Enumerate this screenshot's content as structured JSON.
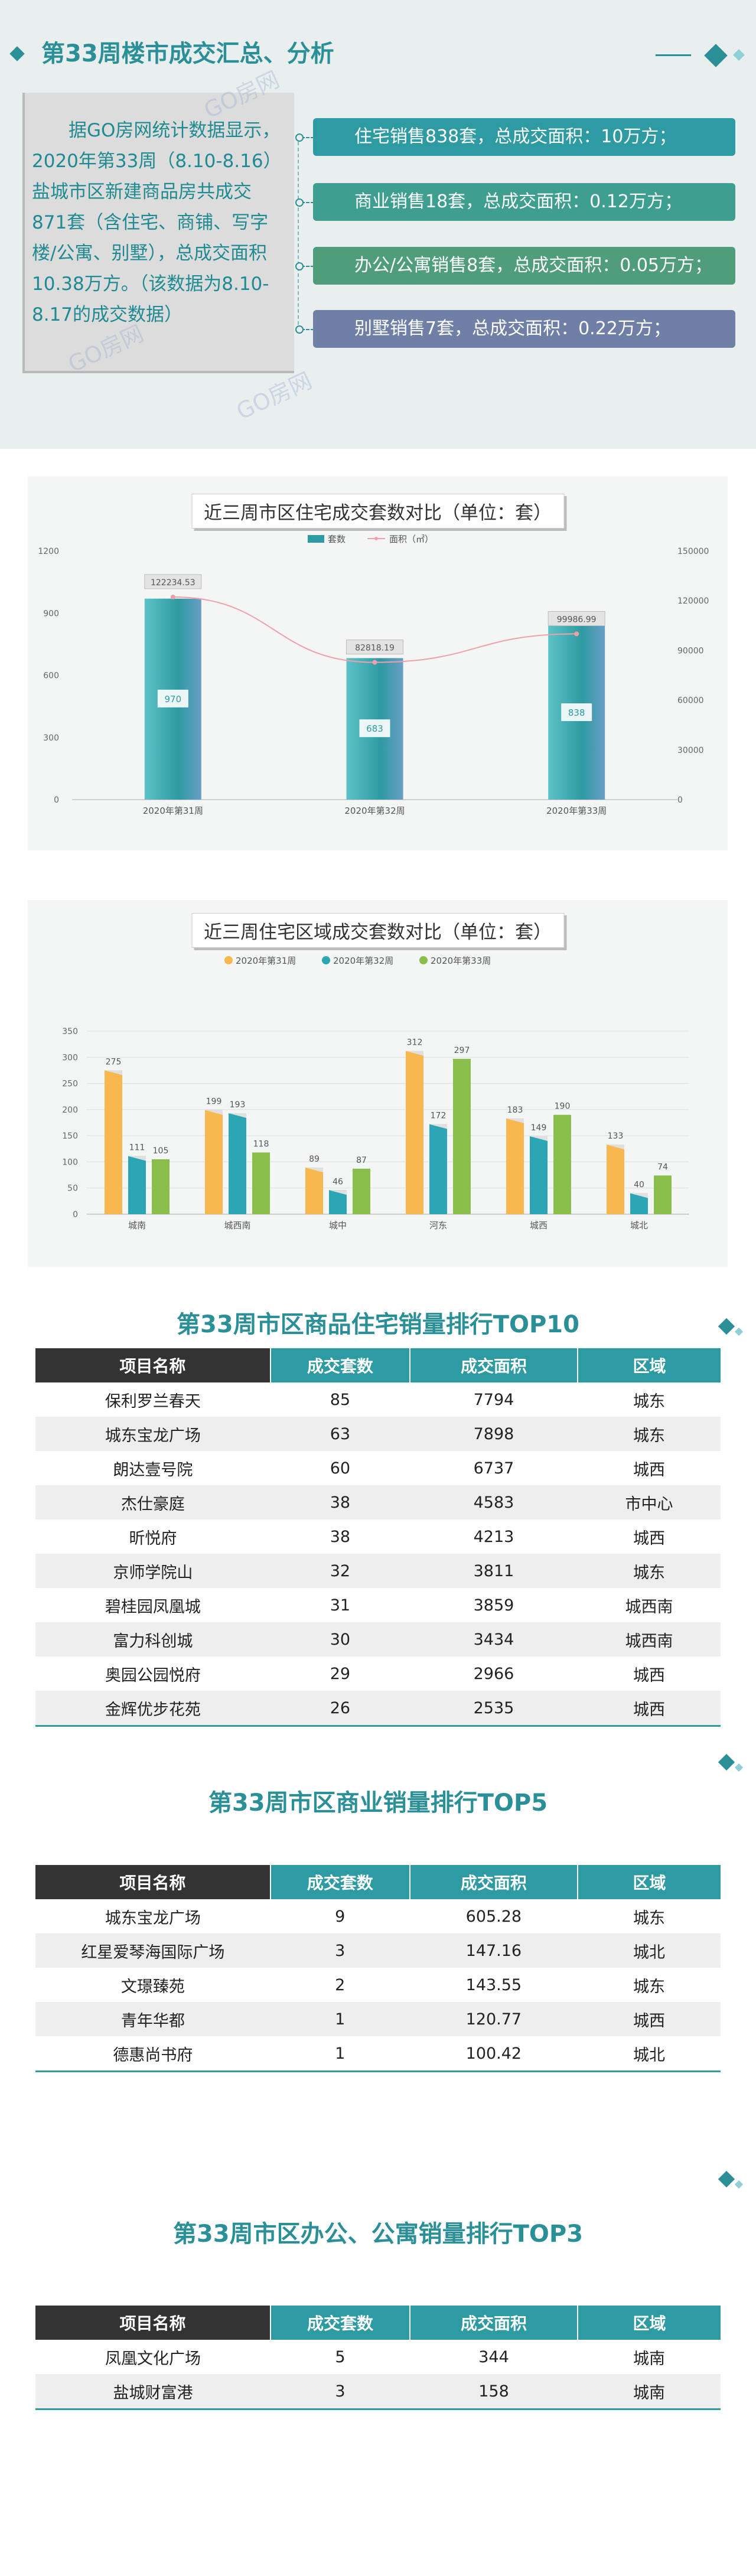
{
  "summary": {
    "title": "第33周楼市成交汇总、分析",
    "text": "据GO房网统计数据显示，2020年第33周（8.10-8.16）盐城市区新建商品房共成交871套（含住宅、商铺、写字楼/公寓、别墅），总成交面积10.38万方。（该数据为8.10-8.17的成交数据）",
    "watermark": "GO房网",
    "items": [
      {
        "text": "住宅销售838套，总成交面积：10万方；",
        "color": "#2e9aa1"
      },
      {
        "text": "商业销售18套，总成交面积：0.12万方；",
        "color": "#3e9e8f"
      },
      {
        "text": "办公/公寓销售8套，总成交面积：0.05万方；",
        "color": "#4f9d7a"
      },
      {
        "text": "别墅销售7套，总成交面积：0.22万方；",
        "color": "#6f7fa6"
      }
    ]
  },
  "chart1": {
    "title": "近三周市区住宅成交套数对比（单位：套）",
    "legend": [
      "套数",
      "面积（㎡）"
    ]
  },
  "chart2": {
    "title": "近三周住宅区域成交套数对比（单位：套）"
  },
  "chart_data": [
    {
      "type": "bar",
      "title": "近三周市区住宅成交套数对比（单位：套）",
      "categories": [
        "2020年第31周",
        "2020年第32周",
        "2020年第33周"
      ],
      "series": [
        {
          "name": "套数",
          "type": "bar",
          "axis": "left",
          "values": [
            970,
            683,
            838
          ]
        },
        {
          "name": "面积（㎡）",
          "type": "line",
          "axis": "right",
          "values": [
            122234.53,
            82818.19,
            99986.99
          ]
        }
      ],
      "ylim": [
        0,
        1200
      ],
      "yticks": [
        0,
        300,
        600,
        900,
        1200
      ],
      "y2lim": [
        0,
        150000
      ],
      "y2ticks": [
        0,
        30000,
        60000,
        90000,
        120000,
        150000
      ],
      "colors": {
        "bar": "#2e9aa1",
        "line": "#f0a0a8"
      }
    },
    {
      "type": "bar",
      "title": "近三周住宅区域成交套数对比（单位：套）",
      "categories": [
        "城南",
        "城西南",
        "城中",
        "河东",
        "城西",
        "城北"
      ],
      "series": [
        {
          "name": "2020年第31周",
          "values": [
            275,
            199,
            89,
            312,
            183,
            133
          ],
          "color": "#f9b84f"
        },
        {
          "name": "2020年第32周",
          "values": [
            111,
            193,
            46,
            172,
            149,
            40
          ],
          "color": "#2ca6b4"
        },
        {
          "name": "2020年第33周",
          "values": [
            105,
            118,
            87,
            297,
            190,
            74
          ],
          "color": "#8bbf4c"
        }
      ],
      "ylim": [
        0,
        350
      ],
      "yticks": [
        0,
        50,
        100,
        150,
        200,
        250,
        300,
        350
      ],
      "grid": true,
      "legend": "top-center"
    }
  ],
  "table1": {
    "title": "第33周市区商品住宅销量排行TOP10",
    "headers": [
      "项目名称",
      "成交套数",
      "成交面积",
      "区域"
    ],
    "rows": [
      [
        "保利罗兰春天",
        "85",
        "7794",
        "城东"
      ],
      [
        "城东宝龙广场",
        "63",
        "7898",
        "城东"
      ],
      [
        "朗达壹号院",
        "60",
        "6737",
        "城西"
      ],
      [
        "杰仕豪庭",
        "38",
        "4583",
        "市中心"
      ],
      [
        "昕悦府",
        "38",
        "4213",
        "城西"
      ],
      [
        "京师学院山",
        "32",
        "3811",
        "城东"
      ],
      [
        "碧桂园凤凰城",
        "31",
        "3859",
        "城西南"
      ],
      [
        "富力科创城",
        "30",
        "3434",
        "城西南"
      ],
      [
        "奥园公园悦府",
        "29",
        "2966",
        "城西"
      ],
      [
        "金辉优步花苑",
        "26",
        "2535",
        "城西"
      ]
    ]
  },
  "table2": {
    "title": "第33周市区商业销量排行TOP5",
    "headers": [
      "项目名称",
      "成交套数",
      "成交面积",
      "区域"
    ],
    "rows": [
      [
        "城东宝龙广场",
        "9",
        "605.28",
        "城东"
      ],
      [
        "红星爱琴海国际广场",
        "3",
        "147.16",
        "城北"
      ],
      [
        "文璟臻苑",
        "2",
        "143.55",
        "城东"
      ],
      [
        "青年华都",
        "1",
        "120.77",
        "城西"
      ],
      [
        "德惠尚书府",
        "1",
        "100.42",
        "城北"
      ]
    ]
  },
  "table3": {
    "title": "第33周市区办公、公寓销量排行TOP3",
    "headers": [
      "项目名称",
      "成交套数",
      "成交面积",
      "区域"
    ],
    "rows": [
      [
        "凤凰文化广场",
        "5",
        "344",
        "城南"
      ],
      [
        "盐城财富港",
        "3",
        "158",
        "城南"
      ]
    ]
  }
}
